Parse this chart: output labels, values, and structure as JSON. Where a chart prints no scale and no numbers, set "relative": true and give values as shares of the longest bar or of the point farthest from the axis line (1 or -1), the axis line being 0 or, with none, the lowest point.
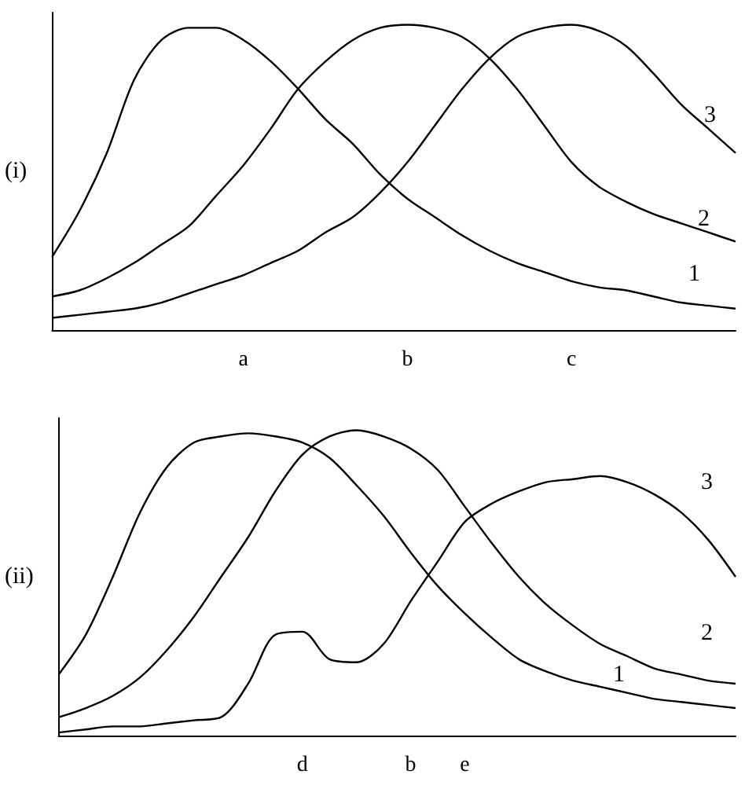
{
  "chart_data": [
    {
      "type": "line",
      "relative": true,
      "ylabel": "(i)",
      "categories": [
        null,
        null,
        null,
        null,
        null,
        null,
        null,
        "a",
        null,
        null,
        null,
        null,
        null,
        "b",
        null,
        null,
        null,
        null,
        null,
        "c",
        null,
        null,
        null,
        null,
        null,
        null
      ],
      "marker": "none",
      "line_style": "solid",
      "grid": false,
      "legend": false,
      "series": [
        {
          "name": "1",
          "color": "#000000",
          "values": [
            0.24,
            0.39,
            0.58,
            0.82,
            0.95,
            0.99,
            0.99,
            0.95,
            0.88,
            0.79,
            0.69,
            0.61,
            0.51,
            0.43,
            0.37,
            0.31,
            0.26,
            0.22,
            0.19,
            0.16,
            0.14,
            0.13,
            0.11,
            0.09,
            0.08,
            0.07
          ]
        },
        {
          "name": "2",
          "color": "#000000",
          "values": [
            0.11,
            0.13,
            0.17,
            0.22,
            0.28,
            0.34,
            0.44,
            0.54,
            0.66,
            0.79,
            0.88,
            0.95,
            0.99,
            1,
            0.99,
            0.96,
            0.89,
            0.79,
            0.67,
            0.55,
            0.47,
            0.42,
            0.38,
            0.35,
            0.32,
            0.29
          ]
        },
        {
          "name": "3",
          "color": "#000000",
          "values": [
            0.04,
            0.05,
            0.06,
            0.07,
            0.09,
            0.12,
            0.15,
            0.18,
            0.22,
            0.26,
            0.32,
            0.37,
            0.45,
            0.55,
            0.67,
            0.79,
            0.89,
            0.96,
            0.99,
            1,
            0.98,
            0.93,
            0.84,
            0.74,
            0.66,
            0.58
          ]
        }
      ]
    },
    {
      "type": "line",
      "relative": true,
      "ylabel": "(ii)",
      "categories": [
        null,
        null,
        null,
        null,
        null,
        null,
        null,
        null,
        null,
        "d",
        null,
        null,
        null,
        "b",
        null,
        "e",
        null,
        null,
        null,
        null,
        null,
        null,
        null,
        null,
        null,
        null
      ],
      "marker": "none",
      "line_style": "solid",
      "grid": false,
      "legend": false,
      "series": [
        {
          "name": "1",
          "color": "#000000",
          "values": [
            0.2,
            0.33,
            0.52,
            0.73,
            0.88,
            0.96,
            0.98,
            0.99,
            0.98,
            0.96,
            0.91,
            0.82,
            0.72,
            0.6,
            0.49,
            0.4,
            0.32,
            0.25,
            0.21,
            0.18,
            0.16,
            0.14,
            0.12,
            0.11,
            0.1,
            0.09
          ]
        },
        {
          "name": "2",
          "color": "#000000",
          "values": [
            0.06,
            0.09,
            0.13,
            0.19,
            0.28,
            0.39,
            0.52,
            0.65,
            0.8,
            0.92,
            0.98,
            1,
            0.98,
            0.94,
            0.87,
            0.75,
            0.63,
            0.52,
            0.43,
            0.36,
            0.3,
            0.26,
            0.22,
            0.2,
            0.18,
            0.17
          ]
        },
        {
          "name": "3",
          "color": "#000000",
          "values": [
            0.01,
            0.02,
            0.03,
            0.03,
            0.04,
            0.05,
            0.06,
            0.17,
            0.33,
            0.34,
            0.25,
            0.24,
            0.3,
            0.44,
            0.57,
            0.7,
            0.76,
            0.8,
            0.83,
            0.84,
            0.85,
            0.83,
            0.79,
            0.73,
            0.64,
            0.52
          ]
        }
      ]
    }
  ]
}
